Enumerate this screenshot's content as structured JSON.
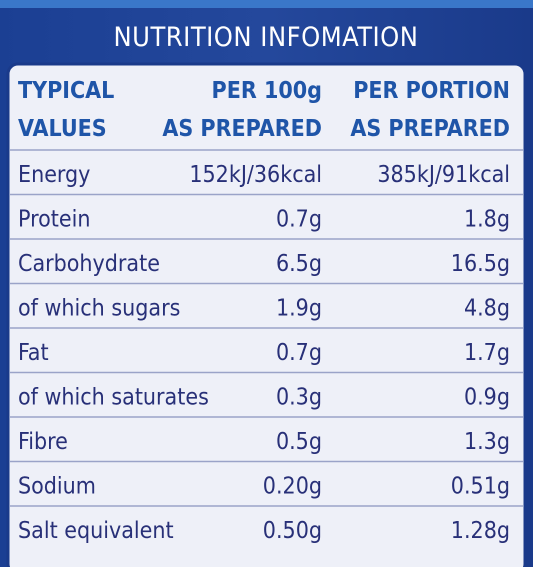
{
  "title": "NUTRITION INFOMATION",
  "table": {
    "header": [
      [
        "TYPICAL",
        "PER 100g",
        "PER PORTION"
      ],
      [
        "VALUES",
        "AS PREPARED",
        "AS PREPARED"
      ]
    ],
    "rows": [
      [
        "Energy",
        "152kJ/36kcal",
        "385kJ/91kcal"
      ],
      [
        "Protein",
        "0.7g",
        "1.8g"
      ],
      [
        "Carbohydrate",
        "6.5g",
        "16.5g"
      ],
      [
        "of which sugars",
        "1.9g",
        "4.8g"
      ],
      [
        "Fat",
        "0.7g",
        "1.7g"
      ],
      [
        "of which saturates",
        "0.3g",
        "0.9g"
      ],
      [
        "Fibre",
        "0.5g",
        "1.3g"
      ],
      [
        "Sodium",
        "0.20g",
        "0.51g"
      ],
      [
        "Salt equivalent",
        "0.50g",
        "1.28g"
      ]
    ]
  }
}
